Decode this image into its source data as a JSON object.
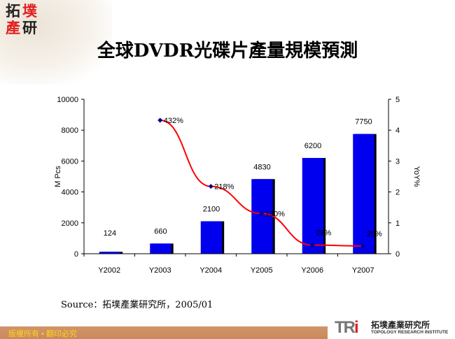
{
  "logo": {
    "chars": [
      "拓",
      "墣",
      "產",
      "研"
    ]
  },
  "title": "全球DVDR光碟片產量規模預測",
  "chart_data": {
    "type": "bar",
    "title": "全球DVDR光碟片產量規模預測",
    "categories": [
      "Y2002",
      "Y2003",
      "Y2004",
      "Y2005",
      "Y2006",
      "Y2007"
    ],
    "series": [
      {
        "name": "M Pcs",
        "type": "bar",
        "axis": "left",
        "values": [
          124,
          660,
          2100,
          4830,
          6200,
          7750
        ],
        "labels": [
          "124",
          "660",
          "2100",
          "4830",
          "6200",
          "7750"
        ],
        "color": "#0000ee"
      },
      {
        "name": "YoY%",
        "type": "line",
        "axis": "right",
        "x": [
          "Y2003",
          "Y2004",
          "Y2005",
          "Y2006",
          "Y2007"
        ],
        "values": [
          4.32,
          2.18,
          1.3,
          0.28,
          0.25
        ],
        "labels": [
          "432%",
          "218%",
          "130%",
          "28%",
          "25%"
        ],
        "color": "#ff0000"
      }
    ],
    "ylabel": "M Pcs",
    "y2label": "YoY%",
    "ylim": [
      0,
      10000
    ],
    "yticks": [
      "0",
      "2000",
      "4000",
      "6000",
      "8000",
      "10000"
    ],
    "y2lim": [
      0,
      5
    ],
    "y2ticks": [
      "0",
      "1",
      "2",
      "3",
      "4",
      "5"
    ],
    "grid": false
  },
  "source": "Source：拓墣產業研究所，2005/01",
  "footer": {
    "copyright": "版權所有 • 翻印必究",
    "org_cn": "拓墣產業研究所",
    "org_en": "TOPOLOGY RESEARCH INSTITUTE",
    "org_abbr": "TRi"
  }
}
